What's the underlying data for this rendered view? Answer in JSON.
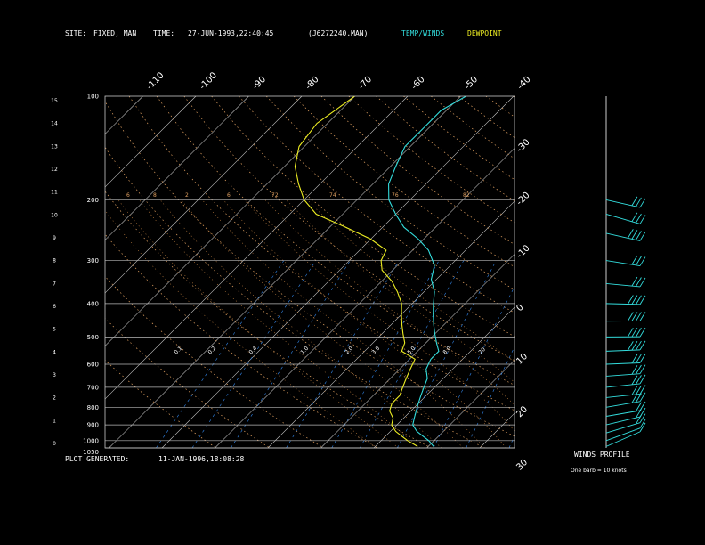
{
  "header": {
    "site_label": "SITE:",
    "site_value": "FIXED, MAN",
    "time_label": "TIME:",
    "time_value": "27-JUN-1993,22:40:45",
    "file_value": "(J6272240.MAN)",
    "legend_temp": "TEMP/WINDS",
    "legend_dew": "DEWPOINT"
  },
  "footer": {
    "generated_label": "PLOT GENERATED:",
    "generated_value": "11-JAN-1996,18:08:28"
  },
  "wind_panel": {
    "title": "WINDS PROFILE",
    "subtitle": "One barb = 10 knots"
  },
  "colors": {
    "temperature": "#33dddd",
    "dewpoint": "#eeee22",
    "wind": "#33dddd",
    "isobar": "#b8b8b8",
    "isotherm": "#c8c8c8",
    "dry_adiabat": "#e0a060",
    "moist_adiabat": "#cc8844",
    "mixing_ratio": "#3388ee"
  },
  "chart_data": {
    "type": "line",
    "pressure_ticks": [
      "100",
      "200",
      "300",
      "400",
      "500",
      "600",
      "700",
      "800",
      "900",
      "1000",
      "1050"
    ],
    "height_ticks": [
      "15",
      "14",
      "13",
      "12",
      "11",
      "10",
      "9",
      "8",
      "7",
      "6",
      "5",
      "4",
      "3",
      "2",
      "1",
      "0"
    ],
    "temp_ticks_top": [
      "-110",
      "-100",
      "-90",
      "-80",
      "-70",
      "-60",
      "-50",
      "-40"
    ],
    "temp_ticks_right": [
      "-30",
      "-20",
      "-10",
      "0",
      "10",
      "20",
      "30"
    ],
    "dry_adiabat_labels": [
      "6",
      "8",
      "2",
      "6",
      "72",
      "74",
      "76",
      "82"
    ],
    "mixing_ratio_labels": [
      "0.1",
      "0.2",
      "0.4",
      "1.0",
      "2.0",
      "3.0",
      "5.0",
      "8.0",
      "20"
    ],
    "series": [
      {
        "name": "TEMP/WINDS",
        "points": [
          [
            1040,
            11
          ],
          [
            1000,
            9
          ],
          [
            970,
            7
          ],
          [
            940,
            5
          ],
          [
            900,
            3
          ],
          [
            860,
            2
          ],
          [
            820,
            1
          ],
          [
            780,
            0
          ],
          [
            740,
            -1
          ],
          [
            700,
            -2
          ],
          [
            660,
            -3
          ],
          [
            620,
            -5
          ],
          [
            580,
            -6
          ],
          [
            550,
            -6
          ],
          [
            520,
            -8
          ],
          [
            490,
            -10
          ],
          [
            460,
            -12
          ],
          [
            430,
            -14
          ],
          [
            400,
            -16
          ],
          [
            370,
            -18
          ],
          [
            340,
            -21
          ],
          [
            310,
            -23
          ],
          [
            280,
            -27
          ],
          [
            260,
            -31
          ],
          [
            240,
            -36
          ],
          [
            220,
            -40
          ],
          [
            200,
            -44
          ],
          [
            180,
            -47
          ],
          [
            160,
            -49
          ],
          [
            140,
            -51
          ],
          [
            125,
            -51
          ],
          [
            110,
            -51
          ],
          [
            100,
            -49
          ]
        ]
      },
      {
        "name": "DEWPOINT",
        "points": [
          [
            1040,
            8
          ],
          [
            1000,
            5
          ],
          [
            970,
            3
          ],
          [
            940,
            1
          ],
          [
            900,
            -1
          ],
          [
            860,
            -2
          ],
          [
            820,
            -4
          ],
          [
            780,
            -5
          ],
          [
            740,
            -5
          ],
          [
            700,
            -6
          ],
          [
            660,
            -7
          ],
          [
            620,
            -8
          ],
          [
            580,
            -9
          ],
          [
            550,
            -13
          ],
          [
            520,
            -14
          ],
          [
            490,
            -16
          ],
          [
            460,
            -18
          ],
          [
            430,
            -20
          ],
          [
            400,
            -22
          ],
          [
            370,
            -25
          ],
          [
            345,
            -28
          ],
          [
            320,
            -32
          ],
          [
            300,
            -34
          ],
          [
            280,
            -35
          ],
          [
            260,
            -40
          ],
          [
            240,
            -47
          ],
          [
            220,
            -55
          ],
          [
            200,
            -60
          ],
          [
            180,
            -64
          ],
          [
            160,
            -68
          ],
          [
            140,
            -71
          ],
          [
            120,
            -72
          ],
          [
            100,
            -70
          ]
        ]
      }
    ],
    "winds": [
      {
        "pressure": 1040,
        "dir_deg": 200,
        "speed_kt": 10
      },
      {
        "pressure": 1000,
        "dir_deg": 210,
        "speed_kt": 10
      },
      {
        "pressure": 950,
        "dir_deg": 220,
        "speed_kt": 15
      },
      {
        "pressure": 900,
        "dir_deg": 230,
        "speed_kt": 20
      },
      {
        "pressure": 850,
        "dir_deg": 240,
        "speed_kt": 20
      },
      {
        "pressure": 800,
        "dir_deg": 240,
        "speed_kt": 25
      },
      {
        "pressure": 750,
        "dir_deg": 250,
        "speed_kt": 25
      },
      {
        "pressure": 700,
        "dir_deg": 250,
        "speed_kt": 30
      },
      {
        "pressure": 650,
        "dir_deg": 255,
        "speed_kt": 30
      },
      {
        "pressure": 600,
        "dir_deg": 260,
        "speed_kt": 30
      },
      {
        "pressure": 550,
        "dir_deg": 260,
        "speed_kt": 35
      },
      {
        "pressure": 500,
        "dir_deg": 265,
        "speed_kt": 35
      },
      {
        "pressure": 450,
        "dir_deg": 265,
        "speed_kt": 40
      },
      {
        "pressure": 400,
        "dir_deg": 270,
        "speed_kt": 40
      },
      {
        "pressure": 350,
        "dir_deg": 280,
        "speed_kt": 30
      },
      {
        "pressure": 300,
        "dir_deg": 290,
        "speed_kt": 30
      },
      {
        "pressure": 250,
        "dir_deg": 300,
        "speed_kt": 35
      },
      {
        "pressure": 220,
        "dir_deg": 310,
        "speed_kt": 30
      },
      {
        "pressure": 200,
        "dir_deg": 300,
        "speed_kt": 25
      }
    ]
  }
}
